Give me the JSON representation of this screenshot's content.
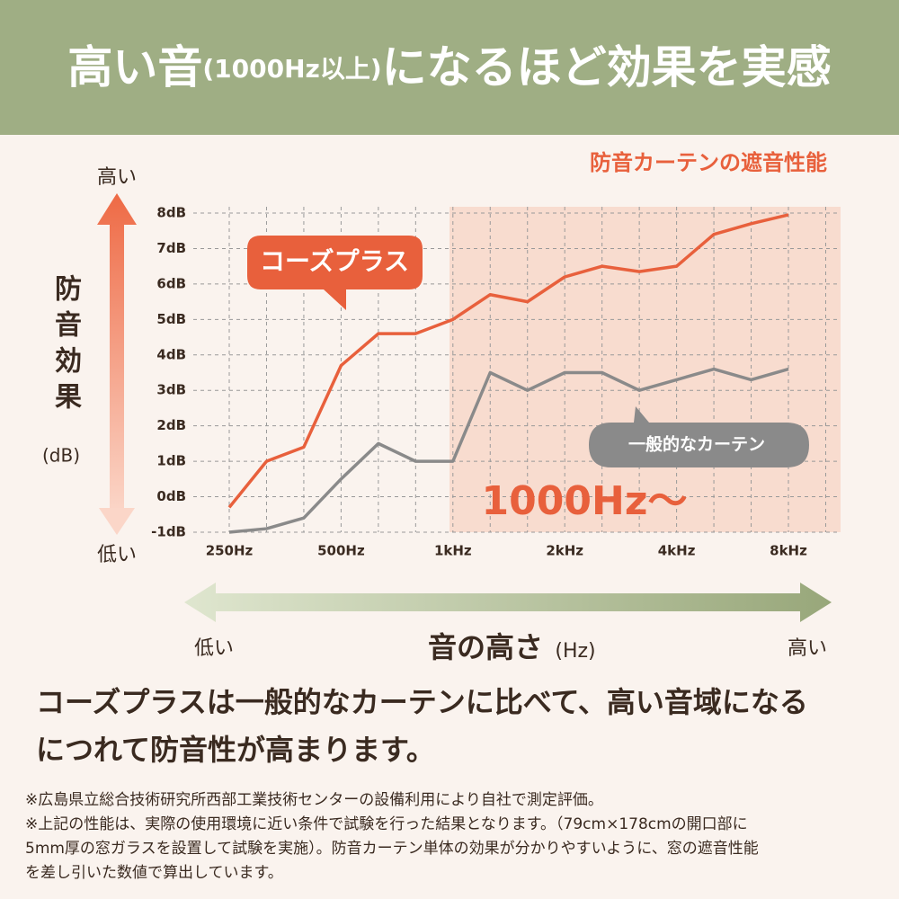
{
  "header": {
    "title_parts": [
      "高い音",
      "(1000Hz以上)",
      "になるほど効果を実感"
    ]
  },
  "chart_data": {
    "type": "line",
    "subtitle": "防音カーテンの遮音性能",
    "y_label": "防音効果",
    "y_unit": "(dB)",
    "y_high": "高い",
    "y_low": "低い",
    "x_label": "音の高さ",
    "x_unit": "(Hz)",
    "x_low": "低い",
    "x_high": "高い",
    "annotation": "1000Hz〜",
    "categories": [
      "250Hz",
      null,
      null,
      "500Hz",
      null,
      null,
      "1kHz",
      null,
      null,
      "2kHz",
      null,
      null,
      "4kHz",
      null,
      null,
      "8kHz"
    ],
    "series": [
      {
        "name": "コーズプラス",
        "color": "#e8603c",
        "values": [
          -0.3,
          1.0,
          1.4,
          3.7,
          4.6,
          4.6,
          5.0,
          5.7,
          5.5,
          6.2,
          6.5,
          6.35,
          6.5,
          7.4,
          7.7,
          7.95
        ]
      },
      {
        "name": "一般的なカーテン",
        "color": "#8a8a8a",
        "values": [
          -1.0,
          -0.9,
          -0.6,
          0.5,
          1.5,
          1.0,
          1.0,
          3.5,
          3.0,
          3.5,
          3.5,
          3.0,
          3.3,
          3.6,
          3.3,
          3.6
        ]
      }
    ],
    "ylim": [
      -1,
      8
    ],
    "yticks": [
      {
        "value": -1,
        "label": "-1dB"
      },
      {
        "value": 0,
        "label": "0dB"
      },
      {
        "value": 1,
        "label": "1dB"
      },
      {
        "value": 2,
        "label": "2dB"
      },
      {
        "value": 3,
        "label": "3dB"
      },
      {
        "value": 4,
        "label": "4dB"
      },
      {
        "value": 5,
        "label": "5dB"
      },
      {
        "value": 6,
        "label": "6dB"
      },
      {
        "value": 7,
        "label": "7dB"
      },
      {
        "value": 8,
        "label": "8dB"
      }
    ],
    "grid": true
  },
  "summary": [
    "コーズプラスは一般的なカーテンに比べて、高い音域になる",
    "につれて防音性が高まります。"
  ],
  "notes": [
    "※広島県立総合技術研究所西部工業技術センターの設備利用により自社で測定評価。",
    "※上記の性能は、実際の使用環境に近い条件で試験を行った結果となります。（79cm×178cmの開口部に",
    "5mm厚の窓ガラスを設置して試験を実施）。防音カーテン単体の効果が分かりやすいように、窓の遮音性能",
    "を差し引いた数値で算出しています。"
  ]
}
